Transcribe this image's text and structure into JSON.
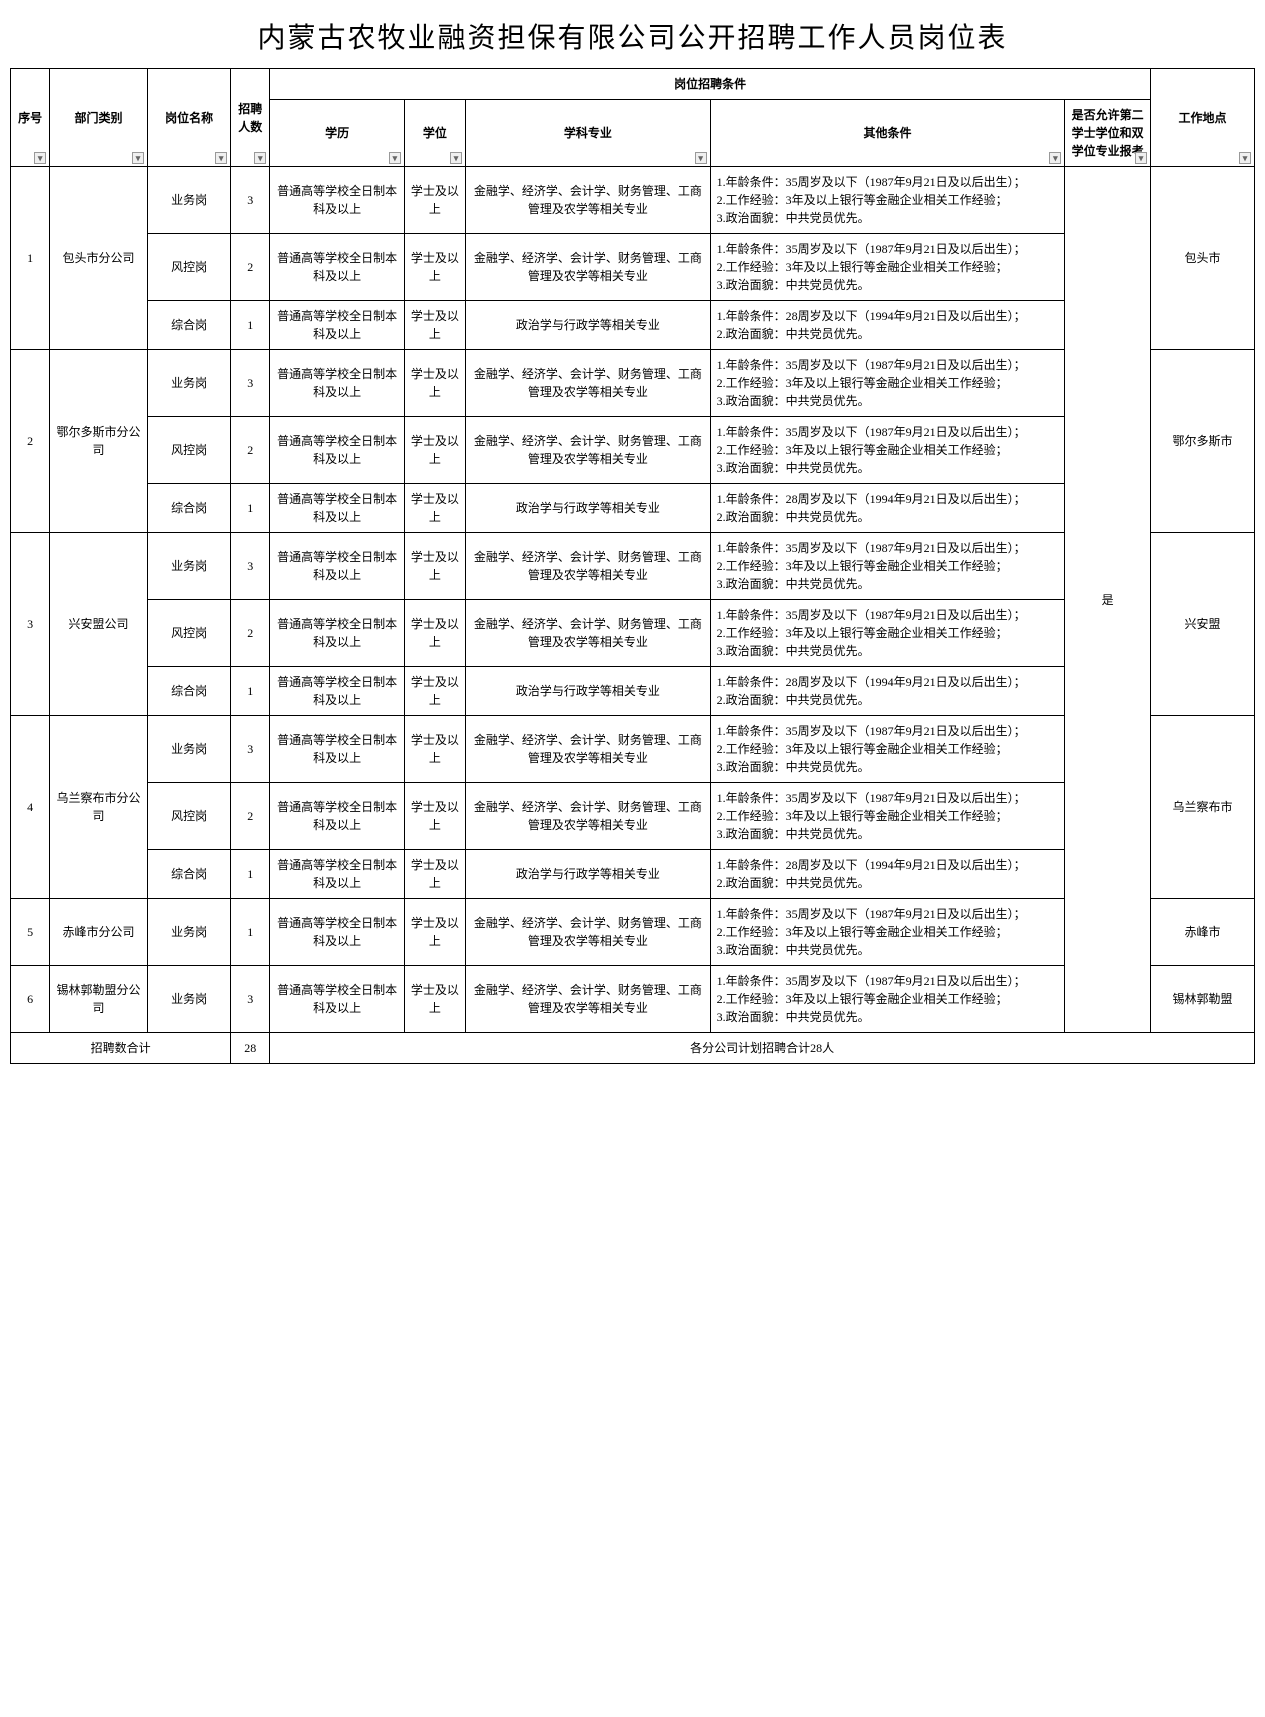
{
  "title": "内蒙古农牧业融资担保有限公司公开招聘工作人员岗位表",
  "headers": {
    "seq": "序号",
    "dept": "部门类别",
    "post": "岗位名称",
    "num": "招聘人数",
    "cond_group": "岗位招聘条件",
    "edu": "学历",
    "deg": "学位",
    "major": "学科专业",
    "other": "其他条件",
    "allow": "是否允许第二学士学位和双学位专业报考",
    "loc": "工作地点"
  },
  "common": {
    "edu": "普通高等学校全日制本科及以上",
    "deg": "学士及以上",
    "major_fin": "金融学、经济学、会计学、财务管理、工商管理及农学等相关专业",
    "major_pol": "政治学与行政学等相关专业",
    "other35": "1.年龄条件：35周岁及以下（1987年9月21日及以后出生）；\n2.工作经验：3年及以上银行等金融企业相关工作经验；\n3.政治面貌：中共党员优先。",
    "other28": "1.年龄条件：28周岁及以下（1994年9月21日及以后出生）；\n2.政治面貌：中共党员优先。",
    "allow_yes": "是"
  },
  "posts": {
    "biz": "业务岗",
    "risk": "风控岗",
    "gen": "综合岗"
  },
  "rows": [
    {
      "seq": "1",
      "dept": "包头市分公司",
      "loc": "包头市",
      "positions": [
        {
          "post": "biz",
          "num": "3",
          "major": "major_fin",
          "other": "other35"
        },
        {
          "post": "risk",
          "num": "2",
          "major": "major_fin",
          "other": "other35"
        },
        {
          "post": "gen",
          "num": "1",
          "major": "major_pol",
          "other": "other28"
        }
      ]
    },
    {
      "seq": "2",
      "dept": "鄂尔多斯市分公司",
      "loc": "鄂尔多斯市",
      "positions": [
        {
          "post": "biz",
          "num": "3",
          "major": "major_fin",
          "other": "other35"
        },
        {
          "post": "risk",
          "num": "2",
          "major": "major_fin",
          "other": "other35"
        },
        {
          "post": "gen",
          "num": "1",
          "major": "major_pol",
          "other": "other28"
        }
      ]
    },
    {
      "seq": "3",
      "dept": "兴安盟公司",
      "loc": "兴安盟",
      "positions": [
        {
          "post": "biz",
          "num": "3",
          "major": "major_fin",
          "other": "other35"
        },
        {
          "post": "risk",
          "num": "2",
          "major": "major_fin",
          "other": "other35"
        },
        {
          "post": "gen",
          "num": "1",
          "major": "major_pol",
          "other": "other28"
        }
      ]
    },
    {
      "seq": "4",
      "dept": "乌兰察布市分公司",
      "loc": "乌兰察布市",
      "positions": [
        {
          "post": "biz",
          "num": "3",
          "major": "major_fin",
          "other": "other35"
        },
        {
          "post": "risk",
          "num": "2",
          "major": "major_fin",
          "other": "other35"
        },
        {
          "post": "gen",
          "num": "1",
          "major": "major_pol",
          "other": "other28"
        }
      ]
    },
    {
      "seq": "5",
      "dept": "赤峰市分公司",
      "loc": "赤峰市",
      "positions": [
        {
          "post": "biz",
          "num": "1",
          "major": "major_fin",
          "other": "other35"
        }
      ]
    },
    {
      "seq": "6",
      "dept": "锡林郭勒盟分公司",
      "loc": "锡林郭勒盟",
      "positions": [
        {
          "post": "biz",
          "num": "3",
          "major": "major_fin",
          "other": "other35"
        }
      ]
    }
  ],
  "footer": {
    "label": "招聘数合计",
    "total": "28",
    "note": "各分公司计划招聘合计28人"
  },
  "style": {
    "title_fontsize": 28,
    "cell_fontsize": 12,
    "border_color": "#000000",
    "background": "#ffffff"
  }
}
